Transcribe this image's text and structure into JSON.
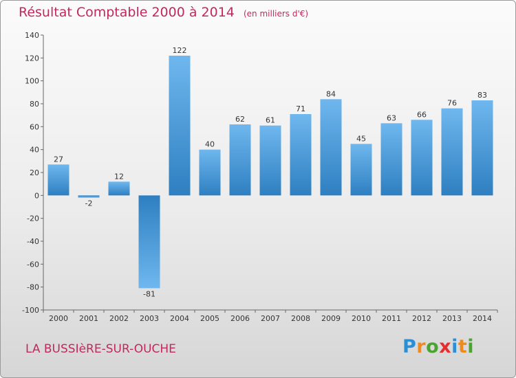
{
  "title": "Résultat Comptable 2000 à 2014",
  "unit_note": "(en milliers d'€)",
  "location": "LA BUSSIèRE-SUR-OUCHE",
  "logo": {
    "letters": [
      "P",
      "r",
      "o",
      "x",
      "i",
      "t",
      "i"
    ],
    "colors": [
      "#2b8fd6",
      "#f08a1c",
      "#4aa52e",
      "#e32f2f",
      "#2b8fd6",
      "#f08a1c",
      "#4aa52e"
    ]
  },
  "colors": {
    "title": "#c1295c",
    "bar_light": "#6fb7ee",
    "bar_dark": "#2e7fc1",
    "axis": "#555555"
  },
  "chart_data": {
    "type": "bar",
    "categories": [
      "2000",
      "2001",
      "2002",
      "2003",
      "2004",
      "2005",
      "2006",
      "2007",
      "2008",
      "2009",
      "2010",
      "2011",
      "2012",
      "2013",
      "2014"
    ],
    "values": [
      27,
      -2,
      12,
      -81,
      122,
      40,
      62,
      61,
      71,
      84,
      45,
      63,
      66,
      76,
      83
    ],
    "ylim": [
      -100,
      140
    ],
    "yticks": [
      140,
      120,
      100,
      80,
      60,
      40,
      20,
      0,
      -20,
      -40,
      -60,
      -80,
      -100
    ],
    "grid": false,
    "legend": "none"
  }
}
